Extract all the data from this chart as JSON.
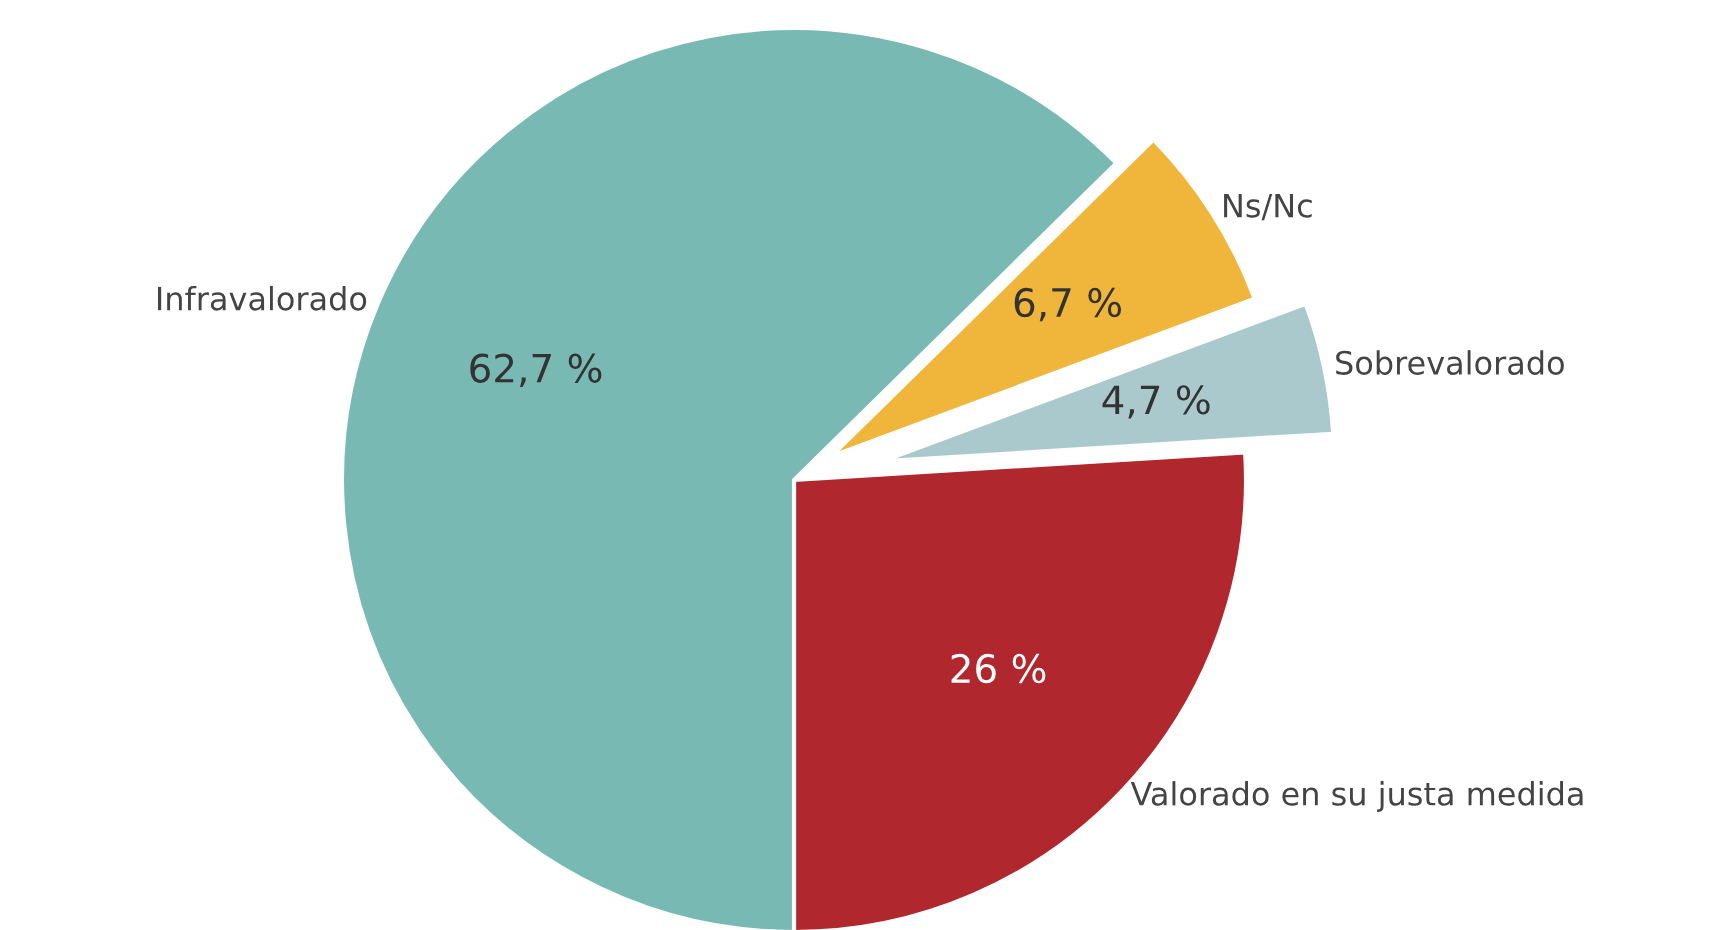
{
  "chart_data": {
    "type": "pie",
    "categories": [
      "Valorado en su justa medida",
      "Sobrevalorado",
      "Ns/Nc",
      "Infravalorado"
    ],
    "values": [
      26,
      4.7,
      6.7,
      62.7
    ],
    "value_labels": [
      "26 %",
      "4,7 %",
      "6,7 %",
      "62,7 %"
    ],
    "colors": [
      "#b0272d",
      "#a9c9cc",
      "#f0b63c",
      "#78b9b4"
    ],
    "legend": false
  }
}
